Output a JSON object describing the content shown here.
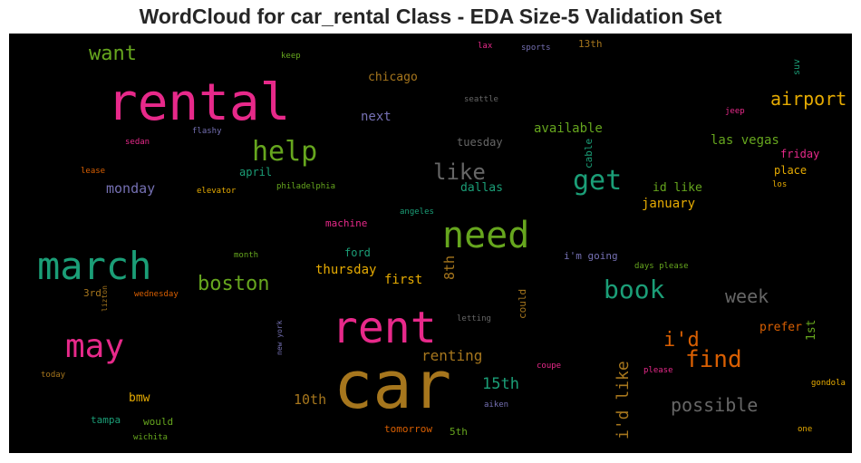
{
  "title": "WordCloud for car_rental Class - EDA Size-5 Validation Set",
  "chart_data": {
    "type": "wordcloud",
    "title": "WordCloud for car_rental Class - EDA Size-5 Validation Set",
    "background": "#000000",
    "colormap": "Dark2",
    "words": [
      {
        "text": "car",
        "color": "#a6761d"
      },
      {
        "text": "rental",
        "color": "#e7298a"
      },
      {
        "text": "rent",
        "color": "#e7298a"
      },
      {
        "text": "march",
        "color": "#1b9e77"
      },
      {
        "text": "need",
        "color": "#66a61e"
      },
      {
        "text": "may",
        "color": "#e7298a"
      },
      {
        "text": "help",
        "color": "#66a61e"
      },
      {
        "text": "get",
        "color": "#1b9e77"
      },
      {
        "text": "book",
        "color": "#1b9e77"
      },
      {
        "text": "find",
        "color": "#d95f02"
      },
      {
        "text": "like",
        "color": "#666666"
      },
      {
        "text": "boston",
        "color": "#66a61e"
      },
      {
        "text": "want",
        "color": "#66a61e"
      },
      {
        "text": "airport",
        "color": "#e6ab02"
      },
      {
        "text": "i'd",
        "color": "#d95f02"
      },
      {
        "text": "week",
        "color": "#666666"
      },
      {
        "text": "possible",
        "color": "#666666"
      },
      {
        "text": "i'd like",
        "color": "#a6761d"
      },
      {
        "text": "renting",
        "color": "#a6761d"
      },
      {
        "text": "15th",
        "color": "#1b9e77"
      },
      {
        "text": "8th",
        "color": "#a6761d"
      },
      {
        "text": "10th",
        "color": "#a6761d"
      },
      {
        "text": "monday",
        "color": "#7570b3"
      },
      {
        "text": "first",
        "color": "#e6ab02"
      },
      {
        "text": "thursday",
        "color": "#e6ab02"
      },
      {
        "text": "available",
        "color": "#66a61e"
      },
      {
        "text": "las vegas",
        "color": "#66a61e"
      },
      {
        "text": "next",
        "color": "#7570b3"
      },
      {
        "text": "chicago",
        "color": "#a6761d"
      },
      {
        "text": "january",
        "color": "#e6ab02"
      },
      {
        "text": "id like",
        "color": "#66a61e"
      },
      {
        "text": "place",
        "color": "#e6ab02"
      },
      {
        "text": "friday",
        "color": "#e7298a"
      },
      {
        "text": "1st",
        "color": "#66a61e"
      },
      {
        "text": "prefer",
        "color": "#d95f02"
      },
      {
        "text": "bmw",
        "color": "#e6ab02"
      },
      {
        "text": "tuesday",
        "color": "#666666"
      },
      {
        "text": "dallas",
        "color": "#1b9e77"
      },
      {
        "text": "april",
        "color": "#1b9e77"
      },
      {
        "text": "could",
        "color": "#a6761d"
      },
      {
        "text": "machine",
        "color": "#e7298a"
      },
      {
        "text": "ford",
        "color": "#1b9e77"
      },
      {
        "text": "i'm going",
        "color": "#7570b3"
      },
      {
        "text": "tampa",
        "color": "#1b9e77"
      },
      {
        "text": "would",
        "color": "#66a61e"
      },
      {
        "text": "tomorrow",
        "color": "#d95f02"
      },
      {
        "text": "5th",
        "color": "#66a61e"
      },
      {
        "text": "3rd",
        "color": "#a6761d"
      },
      {
        "text": "13th",
        "color": "#a6761d"
      },
      {
        "text": "cable",
        "color": "#1b9e77"
      },
      {
        "text": "suv",
        "color": "#1b9e77"
      },
      {
        "text": "keep",
        "color": "#66a61e"
      },
      {
        "text": "lax",
        "color": "#e7298a"
      },
      {
        "text": "sports",
        "color": "#7570b3"
      },
      {
        "text": "seattle",
        "color": "#666666"
      },
      {
        "text": "jeep",
        "color": "#e7298a"
      },
      {
        "text": "flashy",
        "color": "#7570b3"
      },
      {
        "text": "sedan",
        "color": "#e7298a"
      },
      {
        "text": "lease",
        "color": "#d95f02"
      },
      {
        "text": "elevator",
        "color": "#e6ab02"
      },
      {
        "text": "philadelphia",
        "color": "#66a61e"
      },
      {
        "text": "angeles",
        "color": "#1b9e77"
      },
      {
        "text": "los",
        "color": "#e6ab02"
      },
      {
        "text": "month",
        "color": "#66a61e"
      },
      {
        "text": "days please",
        "color": "#66a61e"
      },
      {
        "text": "wednesday",
        "color": "#d95f02"
      },
      {
        "text": "lizton",
        "color": "#a6761d"
      },
      {
        "text": "letting",
        "color": "#666666"
      },
      {
        "text": "new york",
        "color": "#7570b3"
      },
      {
        "text": "coupe",
        "color": "#e7298a"
      },
      {
        "text": "please",
        "color": "#e7298a"
      },
      {
        "text": "gondola",
        "color": "#e6ab02"
      },
      {
        "text": "today",
        "color": "#a6761d"
      },
      {
        "text": "aiken",
        "color": "#7570b3"
      },
      {
        "text": "wichita",
        "color": "#66a61e"
      },
      {
        "text": "one",
        "color": "#e6ab02"
      }
    ]
  }
}
